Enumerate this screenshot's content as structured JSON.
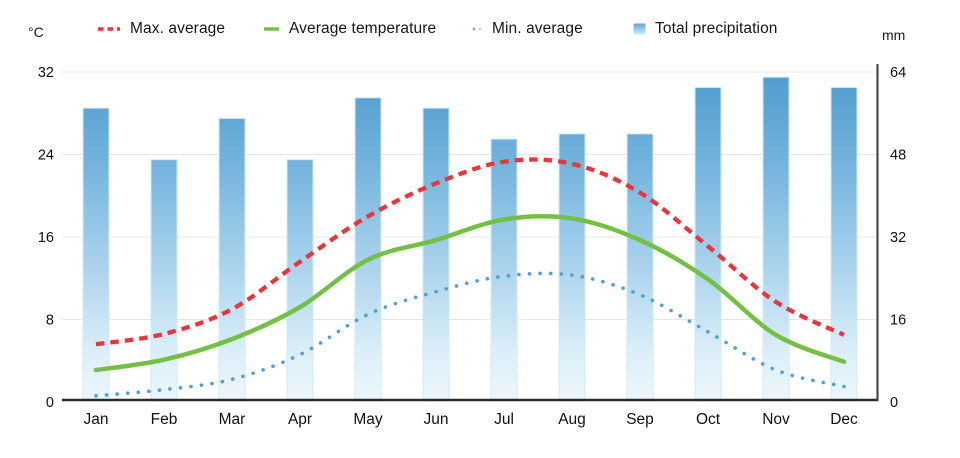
{
  "chart_data": {
    "type": "combo",
    "title": "",
    "categories": [
      "Jan",
      "Feb",
      "Mar",
      "Apr",
      "May",
      "Jun",
      "Jul",
      "Aug",
      "Sep",
      "Oct",
      "Nov",
      "Dec"
    ],
    "left_axis": {
      "unit": "°C",
      "ticks": [
        0,
        8,
        16,
        24,
        32
      ],
      "range": [
        0,
        32
      ]
    },
    "right_axis": {
      "unit": "mm",
      "ticks": [
        0,
        16,
        32,
        48,
        64
      ],
      "range": [
        0,
        64
      ]
    },
    "grid": true,
    "legend_position": "top",
    "series": [
      {
        "name": "Max. average",
        "type": "line",
        "style": "dashed",
        "axis": "left",
        "unit": "°C",
        "color": "#e8353e",
        "values": [
          5.6,
          6.6,
          9.0,
          13.6,
          18.0,
          21.2,
          23.3,
          23.1,
          20.3,
          15.1,
          9.7,
          6.5
        ]
      },
      {
        "name": "Average temperature",
        "type": "line",
        "style": "solid",
        "axis": "left",
        "unit": "°C",
        "color": "#74c044",
        "values": [
          3.1,
          4.1,
          6.1,
          9.2,
          13.8,
          15.7,
          17.7,
          17.8,
          15.7,
          11.9,
          6.5,
          3.9
        ]
      },
      {
        "name": "Min. average",
        "type": "line",
        "style": "dotted",
        "axis": "left",
        "unit": "°C",
        "color": "#4fa0d6",
        "values": [
          0.6,
          1.2,
          2.2,
          4.6,
          8.5,
          10.7,
          12.2,
          12.3,
          10.4,
          6.8,
          3.1,
          1.5
        ]
      },
      {
        "name": "Total precipitation",
        "type": "bar",
        "axis": "right",
        "unit": "mm",
        "color_top": "#4f9bce",
        "color_bottom": "#eef7fc",
        "values": [
          57,
          47,
          55,
          47,
          59,
          57,
          51,
          52,
          52,
          61,
          63,
          61
        ]
      }
    ]
  }
}
